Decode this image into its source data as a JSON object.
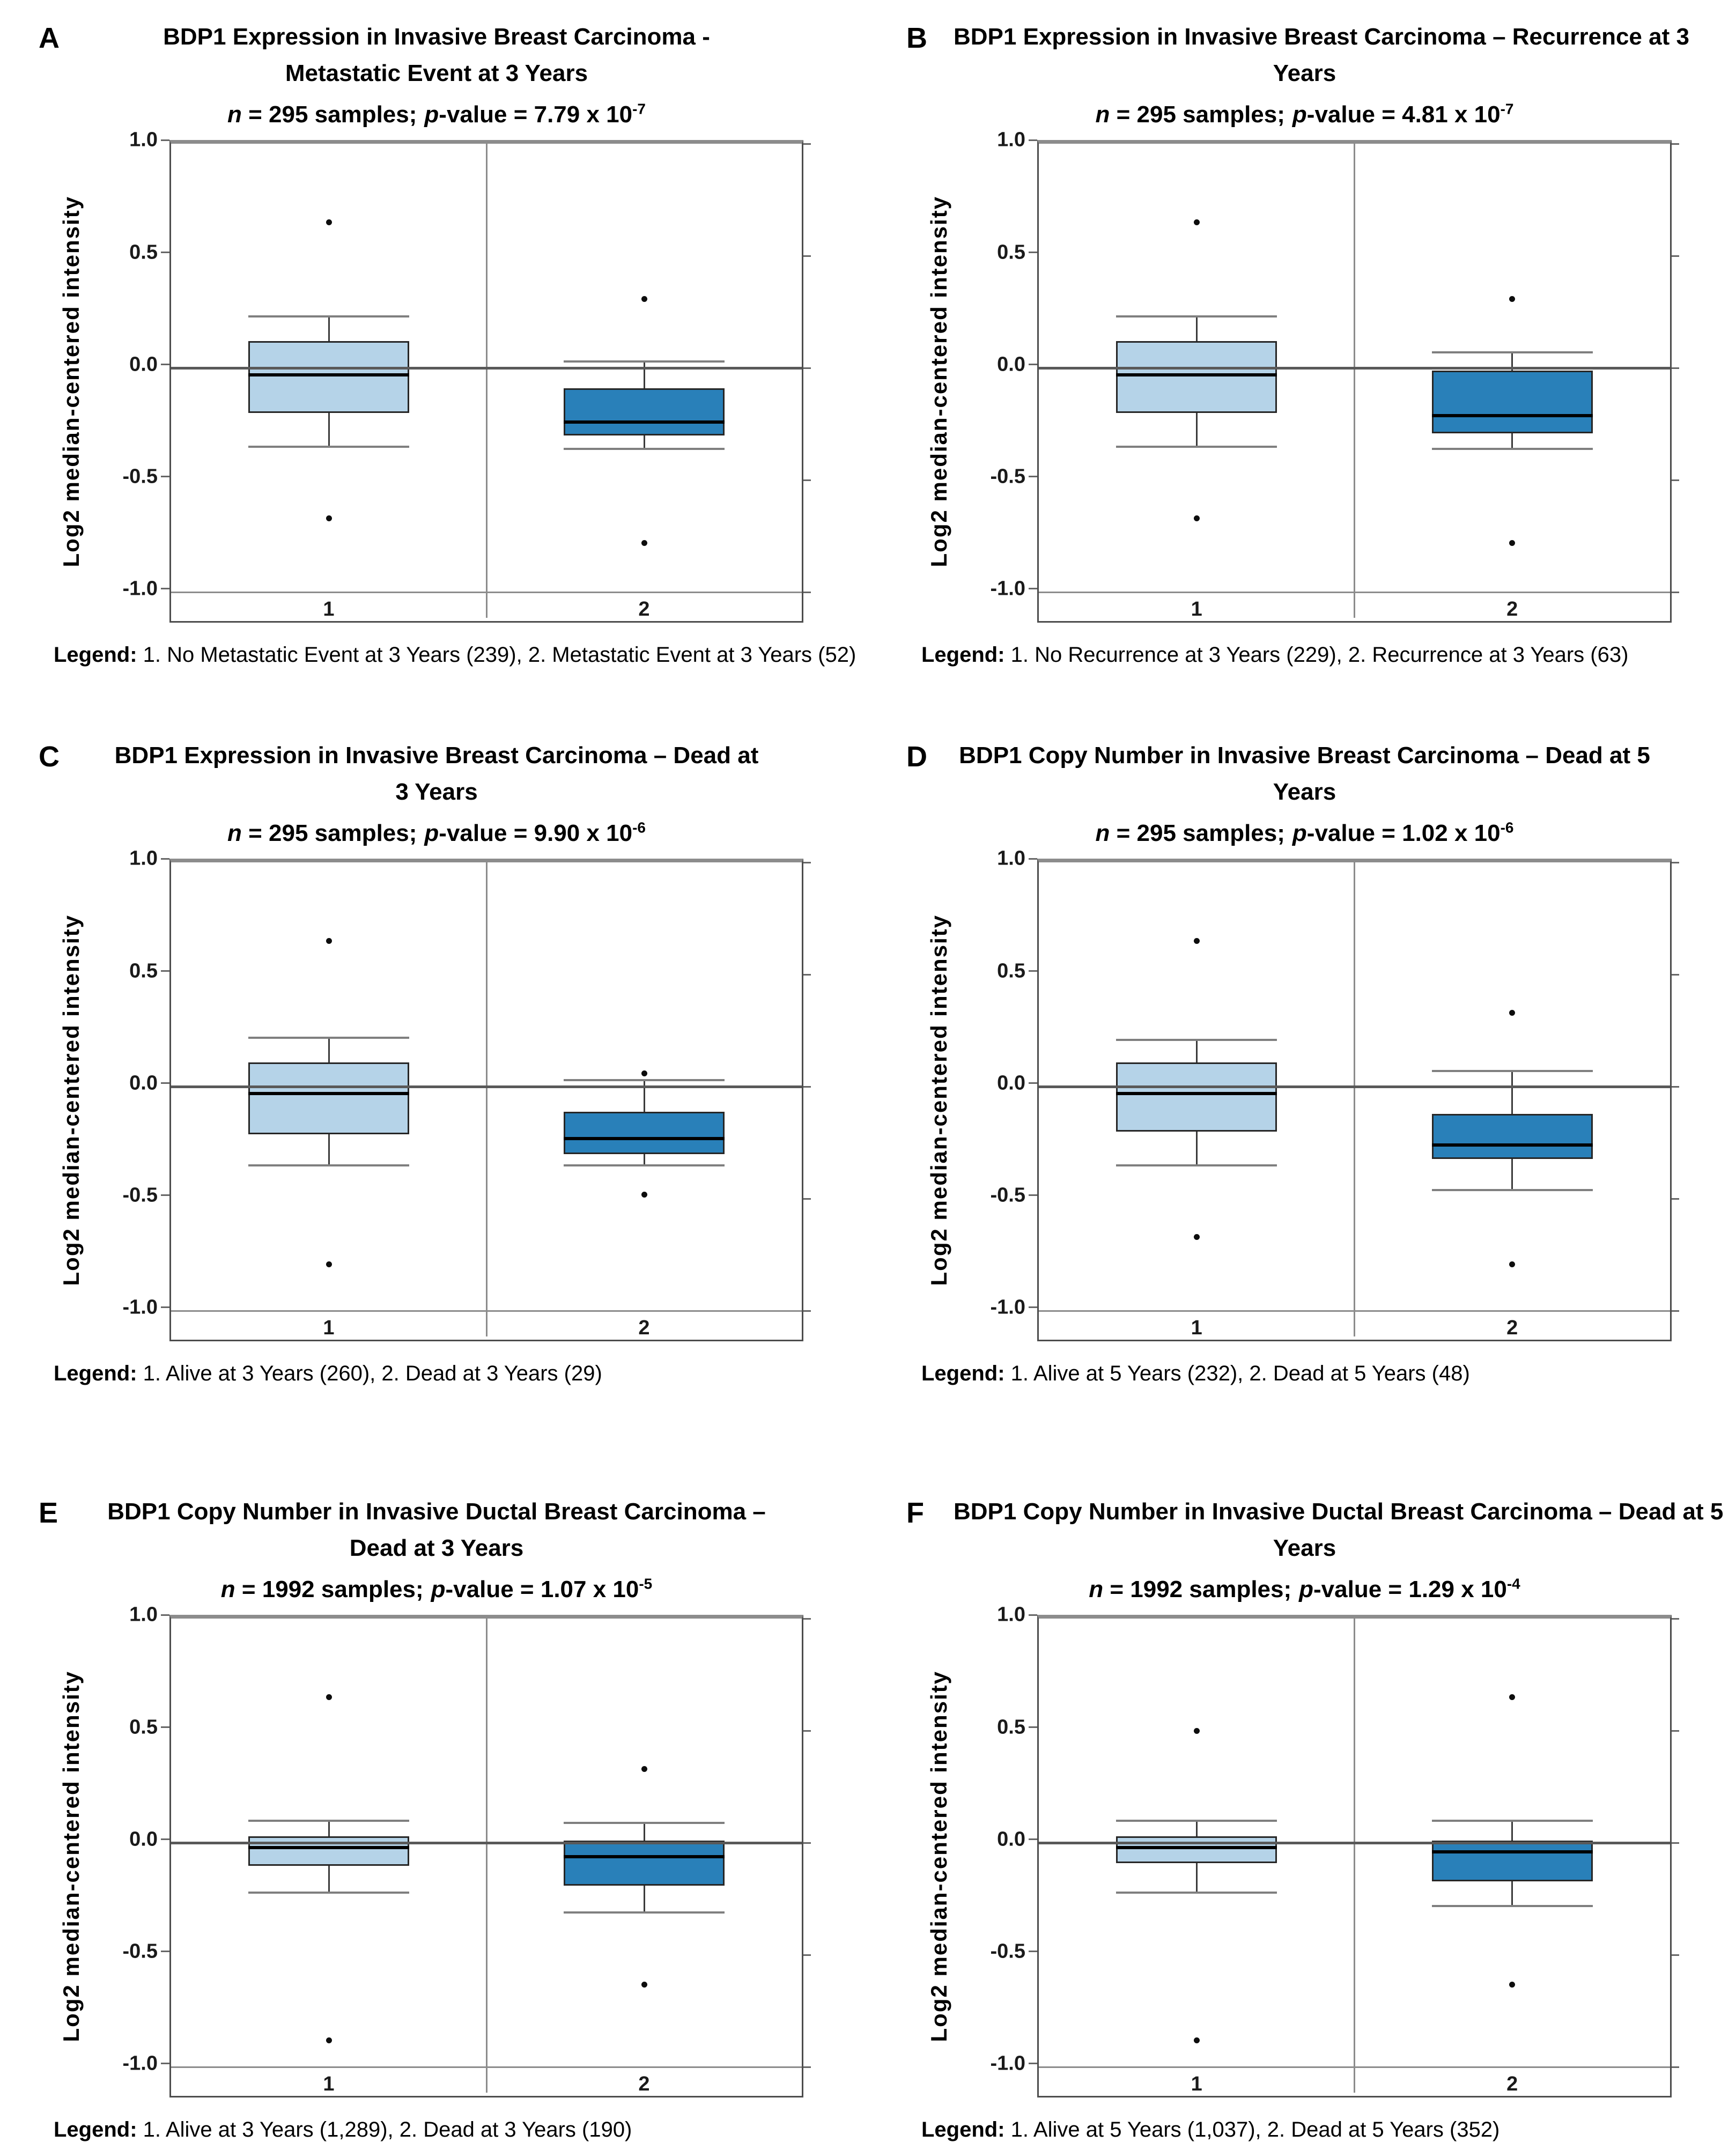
{
  "colors": {
    "light_box": "#b5d3e8",
    "dark_box": "#2980b9",
    "box_border": "#262626",
    "median": "#000000",
    "whisker": "#3a3a3a",
    "cap": "#7f7f7f",
    "zero_line": "#595959",
    "frame": "#4d4d4d",
    "frame_top": "#8c8c8c",
    "grid_minor": "#8c8c8c",
    "outlier": "#0d0d0d",
    "tick_stub": "#666666"
  },
  "panels": [
    {
      "letter": "A",
      "title_line1": "BDP1 Expression in Invasive Breast Carcinoma -",
      "title_line2": "Metastatic Event at 3 Years",
      "stats_n": "n = 295 samples;",
      "stats_p": "p-value = 7.79 x 10",
      "stats_exp": "-7",
      "ylabel": "Log2 median-centered intensity",
      "legend_label": "Legend:",
      "legend_text": " 1. No Metastatic Event at 3 Years (239), 2. Metastatic Event at 3 Years (52)"
    },
    {
      "letter": "B",
      "title_line1": "BDP1 Expression in Invasive Breast Carcinoma – Recurrence at 3",
      "title_line2": "Years",
      "stats_n": "n = 295 samples;",
      "stats_p": "p-value = 4.81 x 10",
      "stats_exp": "-7",
      "ylabel": "Log2 median-centered intensity",
      "legend_label": "Legend:",
      "legend_text": " 1. No Recurrence at 3 Years (229), 2. Recurrence at 3 Years (63)"
    },
    {
      "letter": "C",
      "title_line1": "BDP1 Expression in Invasive Breast Carcinoma – Dead at",
      "title_line2": "3 Years",
      "stats_n": "n = 295 samples;",
      "stats_p": "p-value = 9.90 x 10",
      "stats_exp": "-6",
      "ylabel": "Log2 median-centered intensity",
      "legend_label": "Legend:",
      "legend_text": " 1. Alive at 3 Years (260), 2. Dead at 3 Years (29)"
    },
    {
      "letter": "D",
      "title_line1": "BDP1 Copy Number in Invasive Breast Carcinoma – Dead at 5",
      "title_line2": "Years",
      "stats_n": "n = 295 samples;",
      "stats_p": "p-value = 1.02 x 10",
      "stats_exp": "-6",
      "ylabel": "Log2 median-centered intensity",
      "legend_label": "Legend:",
      "legend_text": " 1. Alive at 5 Years (232), 2. Dead at 5 Years (48)"
    },
    {
      "letter": "E",
      "title_line1": "BDP1 Copy Number  in Invasive Ductal Breast Carcinoma –",
      "title_line2": "Dead at 3 Years",
      "stats_n": "n = 1992 samples;",
      "stats_p": "p-value = 1.07 x 10",
      "stats_exp": "-5",
      "ylabel": "Log2 median-centered intensity",
      "legend_label": "Legend:",
      "legend_text": " 1. Alive at 3 Years (1,289), 2. Dead at 3 Years (190)"
    },
    {
      "letter": "F",
      "title_line1": "BDP1 Copy Number in Invasive Ductal  Breast Carcinoma – Dead at 5",
      "title_line2": "Years",
      "stats_n": "n = 1992 samples;",
      "stats_p": "p-value = 1.29 x 10",
      "stats_exp": "-4",
      "ylabel": "Log2 median-centered intensity",
      "legend_label": "Legend:",
      "legend_text": " 1. Alive at 5 Years (1,037), 2. Dead at 5 Years (352)"
    }
  ],
  "chart_data": [
    {
      "type": "box",
      "panel": "A",
      "title": "BDP1 Expression in Invasive Breast Carcinoma - Metastatic Event at 3 Years",
      "n_samples": 295,
      "p_value": "7.79 x 10^-7",
      "ylabel": "Log2 median-centered intensity",
      "ylim": [
        -1.0,
        1.0
      ],
      "yticks": [
        1.0,
        0.5,
        0.0,
        -0.5,
        -1.0
      ],
      "ytick_labels": [
        "1.0",
        "0.5",
        "0.0",
        "-0.5",
        "-1.0"
      ],
      "groups": [
        {
          "x_label": "1",
          "name": "No Metastatic Event at 3 Years",
          "count": "239",
          "whisker_high": 0.23,
          "q3": 0.12,
          "median": -0.03,
          "q1": -0.2,
          "whisker_low": -0.35,
          "outliers": [
            0.65,
            -0.67
          ],
          "color": "light_box"
        },
        {
          "x_label": "2",
          "name": "Metastatic Event at 3 Years",
          "count": "52",
          "whisker_high": 0.03,
          "q3": -0.09,
          "median": -0.24,
          "q1": -0.3,
          "whisker_low": -0.36,
          "outliers": [
            0.31,
            -0.78
          ],
          "color": "dark_box"
        }
      ]
    },
    {
      "type": "box",
      "panel": "B",
      "title": "BDP1 Expression in Invasive Breast Carcinoma – Recurrence at 3 Years",
      "n_samples": 295,
      "p_value": "4.81 x 10^-7",
      "ylabel": "Log2 median-centered intensity",
      "ylim": [
        -1.0,
        1.0
      ],
      "yticks": [
        1.0,
        0.5,
        0.0,
        -0.5,
        -1.0
      ],
      "ytick_labels": [
        "1.0",
        "0.5",
        "0.0",
        "-0.5",
        "-1.0"
      ],
      "groups": [
        {
          "x_label": "1",
          "name": "No Recurrence at 3 Years",
          "count": "229",
          "whisker_high": 0.23,
          "q3": 0.12,
          "median": -0.03,
          "q1": -0.2,
          "whisker_low": -0.35,
          "outliers": [
            0.65,
            -0.67
          ],
          "color": "light_box"
        },
        {
          "x_label": "2",
          "name": "Recurrence at 3 Years",
          "count": "63",
          "whisker_high": 0.07,
          "q3": -0.01,
          "median": -0.21,
          "q1": -0.29,
          "whisker_low": -0.36,
          "outliers": [
            0.31,
            -0.78
          ],
          "color": "dark_box"
        }
      ]
    },
    {
      "type": "box",
      "panel": "C",
      "title": "BDP1 Expression in Invasive Breast Carcinoma – Dead at 3 Years",
      "n_samples": 295,
      "p_value": "9.90 x 10^-6",
      "ylabel": "Log2 median-centered intensity",
      "ylim": [
        -1.0,
        1.0
      ],
      "yticks": [
        1.0,
        0.5,
        0.0,
        -0.5,
        -1.0
      ],
      "ytick_labels": [
        "1.0",
        "0.5",
        "0.0",
        "-0.5",
        "-1.0"
      ],
      "groups": [
        {
          "x_label": "1",
          "name": "Alive at 3 Years",
          "count": "260",
          "whisker_high": 0.22,
          "q3": 0.11,
          "median": -0.03,
          "q1": -0.21,
          "whisker_low": -0.35,
          "outliers": [
            0.65,
            -0.79
          ],
          "color": "light_box"
        },
        {
          "x_label": "2",
          "name": "Dead at 3 Years",
          "count": "29",
          "whisker_high": 0.03,
          "q3": -0.11,
          "median": -0.23,
          "q1": -0.3,
          "whisker_low": -0.35,
          "outliers": [
            0.06,
            -0.48
          ],
          "color": "dark_box"
        }
      ]
    },
    {
      "type": "box",
      "panel": "D",
      "title": "BDP1 Copy Number in Invasive Breast Carcinoma – Dead at 5 Years",
      "n_samples": 295,
      "p_value": "1.02 x 10^-6",
      "ylabel": "Log2 median-centered intensity",
      "ylim": [
        -1.0,
        1.0
      ],
      "yticks": [
        1.0,
        0.5,
        0.0,
        -0.5,
        -1.0
      ],
      "ytick_labels": [
        "1.0",
        "0.5",
        "0.0",
        "-0.5",
        "-1.0"
      ],
      "groups": [
        {
          "x_label": "1",
          "name": "Alive at 5 Years",
          "count": "232",
          "whisker_high": 0.21,
          "q3": 0.11,
          "median": -0.03,
          "q1": -0.2,
          "whisker_low": -0.35,
          "outliers": [
            0.65,
            -0.67
          ],
          "color": "light_box"
        },
        {
          "x_label": "2",
          "name": "Dead at 5 Years",
          "count": "48",
          "whisker_high": 0.07,
          "q3": -0.12,
          "median": -0.26,
          "q1": -0.32,
          "whisker_low": -0.46,
          "outliers": [
            0.33,
            -0.79
          ],
          "color": "dark_box"
        }
      ]
    },
    {
      "type": "box",
      "panel": "E",
      "title": "BDP1 Copy Number in Invasive Ductal Breast Carcinoma – Dead at 3 Years",
      "n_samples": 1992,
      "p_value": "1.07 x 10^-5",
      "ylabel": "Log2 median-centered intensity",
      "ylim": [
        -1.0,
        1.0
      ],
      "yticks": [
        1.0,
        0.5,
        0.0,
        -0.5,
        -1.0
      ],
      "ytick_labels": [
        "1.0",
        "0.5",
        "0.0",
        "-0.5",
        "-1.0"
      ],
      "groups": [
        {
          "x_label": "1",
          "name": "Alive at 3 Years",
          "count": "1,289",
          "whisker_high": 0.1,
          "q3": 0.03,
          "median": -0.02,
          "q1": -0.1,
          "whisker_low": -0.22,
          "outliers": [
            0.65,
            -0.88
          ],
          "color": "light_box"
        },
        {
          "x_label": "2",
          "name": "Dead at 3 Years",
          "count": "190",
          "whisker_high": 0.09,
          "q3": 0.01,
          "median": -0.06,
          "q1": -0.19,
          "whisker_low": -0.31,
          "outliers": [
            0.33,
            -0.63
          ],
          "color": "dark_box"
        }
      ]
    },
    {
      "type": "box",
      "panel": "F",
      "title": "BDP1 Copy Number in Invasive Ductal Breast Carcinoma – Dead at 5 Years",
      "n_samples": 1992,
      "p_value": "1.29 x 10^-4",
      "ylabel": "Log2 median-centered intensity",
      "ylim": [
        -1.0,
        1.0
      ],
      "yticks": [
        1.0,
        0.5,
        0.0,
        -0.5,
        -1.0
      ],
      "ytick_labels": [
        "1.0",
        "0.5",
        "0.0",
        "-0.5",
        "-1.0"
      ],
      "groups": [
        {
          "x_label": "1",
          "name": "Alive at 5 Years",
          "count": "1,037",
          "whisker_high": 0.1,
          "q3": 0.03,
          "median": -0.02,
          "q1": -0.09,
          "whisker_low": -0.22,
          "outliers": [
            0.5,
            -0.88
          ],
          "color": "light_box"
        },
        {
          "x_label": "2",
          "name": "Dead at 5 Years",
          "count": "352",
          "whisker_high": 0.1,
          "q3": 0.01,
          "median": -0.04,
          "q1": -0.17,
          "whisker_low": -0.28,
          "outliers": [
            0.65,
            -0.63
          ],
          "color": "dark_box"
        }
      ]
    }
  ]
}
